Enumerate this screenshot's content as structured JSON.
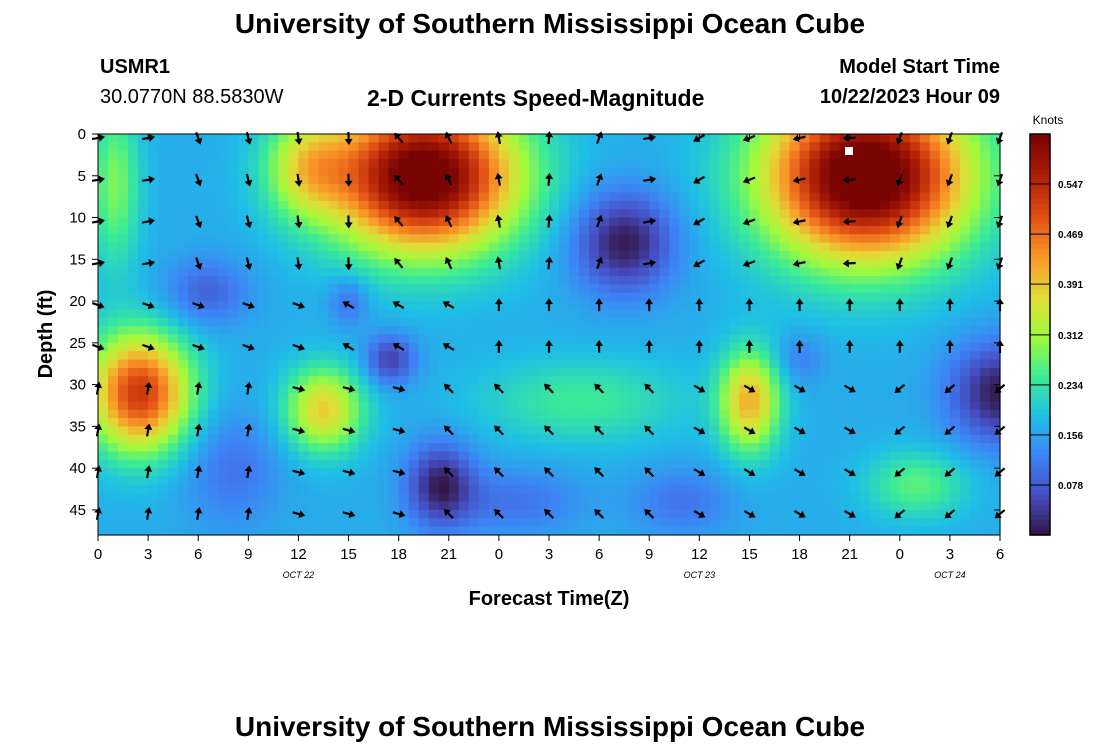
{
  "header": {
    "title": "University of Southern Mississippi Ocean Cube",
    "station": "USMR1",
    "coords": "30.0770N  88.5830W",
    "plot_title": "2-D Currents Speed-Magnitude",
    "model_start_label": "Model Start Time",
    "model_start_value": "10/22/2023 Hour 09"
  },
  "footer": {
    "title": "University of Southern Mississippi Ocean Cube"
  },
  "chart_data": {
    "type": "heatmap",
    "xlabel": "Forecast Time(Z)",
    "ylabel": "Depth (ft)",
    "x_ticks": [
      "0",
      "3",
      "6",
      "9",
      "12",
      "15",
      "18",
      "21",
      "0",
      "3",
      "6",
      "9",
      "12",
      "15",
      "18",
      "21",
      "0",
      "3",
      "6"
    ],
    "x_hours": [
      0,
      3,
      6,
      9,
      12,
      15,
      18,
      21,
      24,
      27,
      30,
      33,
      36,
      39,
      42,
      45,
      48,
      51,
      54
    ],
    "date_labels": [
      {
        "label": "OCT 22",
        "hour": 12
      },
      {
        "label": "OCT 23",
        "hour": 36
      },
      {
        "label": "OCT 24",
        "hour": 51
      }
    ],
    "y_ticks": [
      0,
      5,
      10,
      15,
      20,
      25,
      30,
      35,
      40,
      45
    ],
    "ylim": [
      0,
      48
    ],
    "xlim": [
      0,
      54
    ],
    "colorbar": {
      "label": "Knots",
      "ticks": [
        "0.547",
        "0.469",
        "0.391",
        "0.312",
        "0.234",
        "0.156",
        "0.078"
      ],
      "tick_values": [
        0.547,
        0.469,
        0.391,
        0.312,
        0.234,
        0.156,
        0.078
      ],
      "range": [
        0,
        0.625
      ]
    },
    "speed_features": [
      {
        "hour": 19.5,
        "depth": 6,
        "speed": 0.6
      },
      {
        "hour": 46,
        "depth": 6,
        "speed": 0.62
      },
      {
        "hour": 2.5,
        "depth": 31,
        "speed": 0.48
      },
      {
        "hour": 13.5,
        "depth": 33,
        "speed": 0.42
      },
      {
        "hour": 39,
        "depth": 33,
        "speed": 0.42
      },
      {
        "hour": 31.5,
        "depth": 13,
        "speed": 0.02
      },
      {
        "hour": 20.5,
        "depth": 42,
        "speed": 0.02
      },
      {
        "hour": 54,
        "depth": 31,
        "speed": 0.01
      },
      {
        "hour": 17.5,
        "depth": 27,
        "speed": 0.03
      }
    ],
    "grid": false
  }
}
